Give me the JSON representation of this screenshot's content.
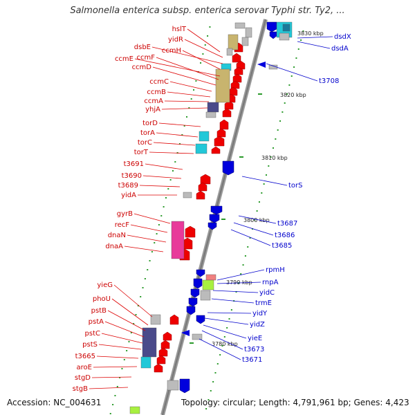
{
  "title": "Salmonella enterica subsp. enterica serovar Typhi str. Ty2, ...",
  "footer": {
    "accession": "Accession: NC_004631",
    "topology": "Topology: circular; Length: 4,791,961 bp; Genes: 4,423"
  },
  "kbp_markers": [
    "3830 kbp",
    "3820 kbp",
    "3810 kbp",
    "3800 kbp",
    "3790 kbp",
    "3780 kbp"
  ],
  "left_labels": [
    "hslT",
    "yidR",
    "dsbE",
    "ccmH",
    "ccmE",
    "ccmF",
    "ccmD",
    "ccmC",
    "ccmB",
    "ccmA",
    "yhjA",
    "torD",
    "torA",
    "torC",
    "torT",
    "t3691",
    "t3690",
    "t3689",
    "yidA",
    "gyrB",
    "recF",
    "dnaN",
    "dnaA",
    "yieG",
    "phoU",
    "pstB",
    "pstA",
    "pstC",
    "pstS",
    "t3665",
    "aroE",
    "stgD",
    "stgB"
  ],
  "right_labels": [
    "dsdX",
    "dsdA",
    "t3708",
    "torS",
    "t3687",
    "t3686",
    "t3685",
    "rpmH",
    "rnpA",
    "yidC",
    "trmE",
    "yidY",
    "yidZ",
    "yieE",
    "t3673",
    "t3671"
  ],
  "colors": {
    "forward": "#ee0000",
    "reverse": "#0000dd",
    "grey": "#bbbbbb",
    "olive": "#c8b46e",
    "navy": "#4a4a8a",
    "cyan": "#22c8d8",
    "magenta": "#e83a9a",
    "lime": "#a8f040",
    "backbone": "#888888"
  }
}
